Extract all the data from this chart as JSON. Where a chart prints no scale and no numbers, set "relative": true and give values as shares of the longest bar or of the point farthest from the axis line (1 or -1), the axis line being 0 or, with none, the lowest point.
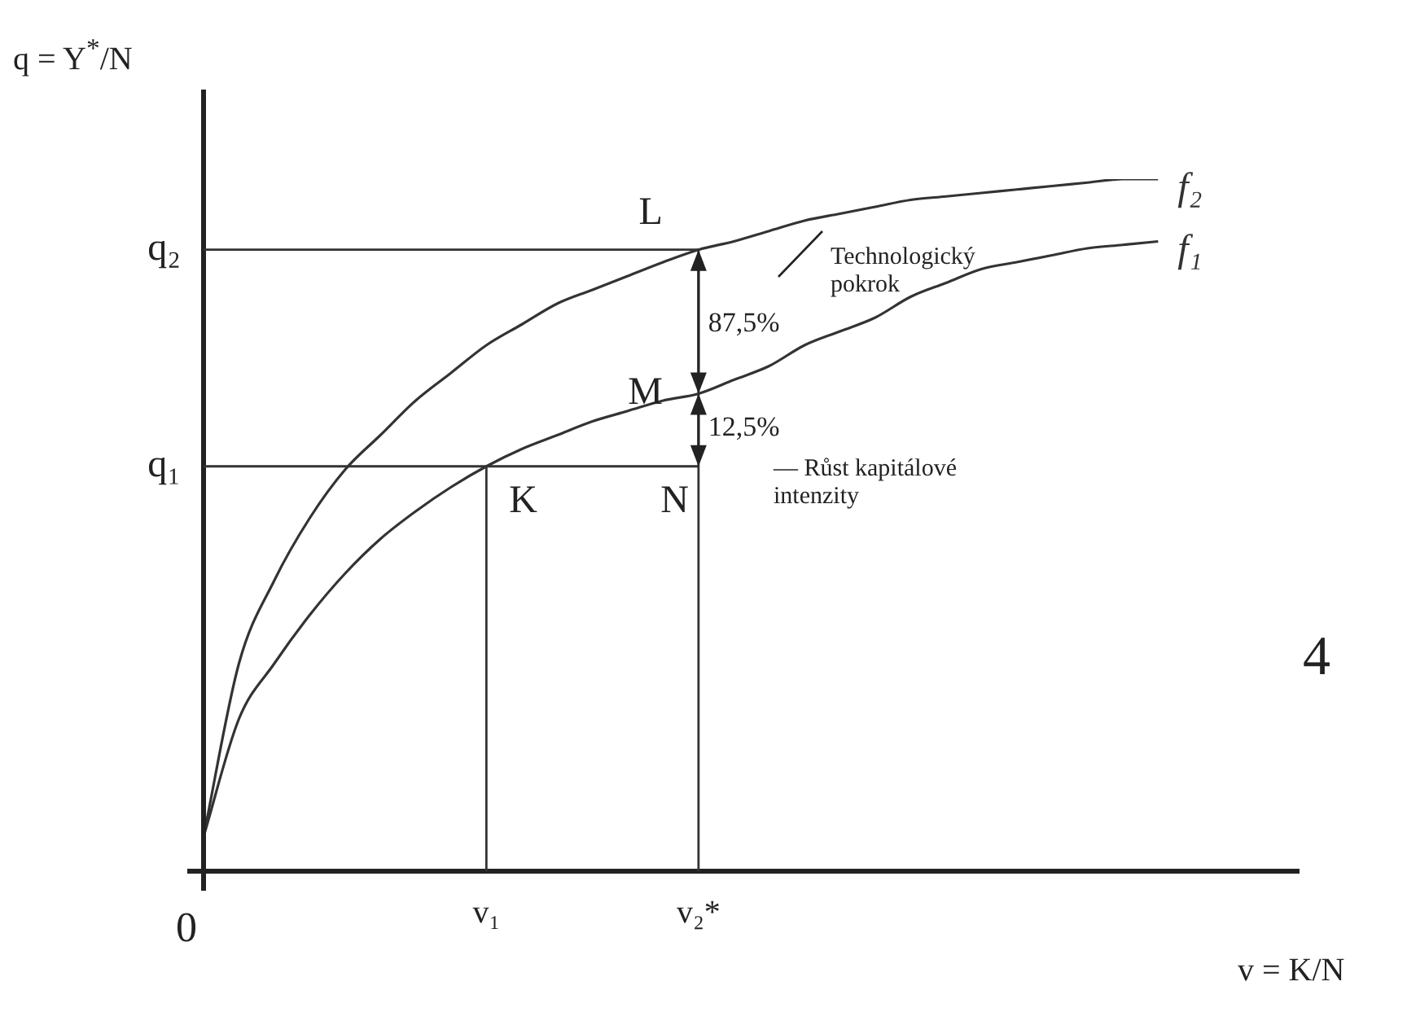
{
  "chart_data": {
    "type": "line",
    "relative": true,
    "xlabel": "v = K/N",
    "ylabel": "q = Y$^{*}$/N",
    "categories": [
      null,
      null,
      null,
      null,
      null,
      null,
      null,
      null,
      "v₁",
      null,
      null,
      null,
      null,
      null,
      "v₂*",
      null,
      null,
      null,
      null,
      null,
      null,
      null,
      null,
      null,
      null,
      null,
      null,
      null,
      null,
      null,
      null,
      null
    ],
    "series": [
      {
        "name": "f₂",
        "color": "#333333",
        "values": [
          0.05,
          0.3,
          0.42,
          0.51,
          0.58,
          0.63,
          0.68,
          0.72,
          0.76,
          0.79,
          0.82,
          0.84,
          0.86,
          0.88,
          0.898,
          0.91,
          0.925,
          0.94,
          0.95,
          0.96,
          0.97,
          0.975,
          0.98,
          0.985,
          0.99,
          0.995,
          1,
          1,
          null,
          null,
          null,
          null
        ]
      },
      {
        "name": "f₁",
        "color": "#333333",
        "values": [
          0.05,
          0.22,
          0.3,
          0.37,
          0.43,
          0.48,
          0.52,
          0.555,
          0.585,
          0.61,
          0.63,
          0.65,
          0.665,
          0.68,
          0.69,
          0.71,
          0.73,
          0.76,
          0.78,
          0.8,
          0.83,
          0.85,
          0.87,
          0.88,
          0.89,
          0.9,
          0.905,
          0.91,
          null,
          null,
          null,
          null
        ]
      }
    ],
    "ref_lines": [
      {
        "axis": "y",
        "value": 0.898,
        "label": "q₂",
        "color": "#333333"
      },
      {
        "axis": "y",
        "value": 0.585,
        "label": "q₁",
        "color": "#333333"
      },
      {
        "axis": "x",
        "value": "v₁",
        "color": "#333333"
      },
      {
        "axis": "x",
        "value": "v₂*",
        "color": "#333333"
      }
    ],
    "annotations": [
      {
        "text": "L",
        "x": "v₂*",
        "y": 0.898
      },
      {
        "text": "M",
        "x": "v₂*",
        "y": 0.69
      },
      {
        "text": "K",
        "x": "v₁",
        "y": 0.585
      },
      {
        "text": "N",
        "x": "v₂*",
        "y": 0.585
      },
      {
        "text": "87,5%",
        "x": "v₂*",
        "y": 0.79
      },
      {
        "text": "12,5%",
        "x": "v₂*",
        "y": 0.64
      },
      "Technologický pokrok",
      "— Růst kapitálové intenzity",
      "0",
      "4"
    ],
    "grid": false,
    "legend": false,
    "marker": "none",
    "line_style": "solid"
  }
}
